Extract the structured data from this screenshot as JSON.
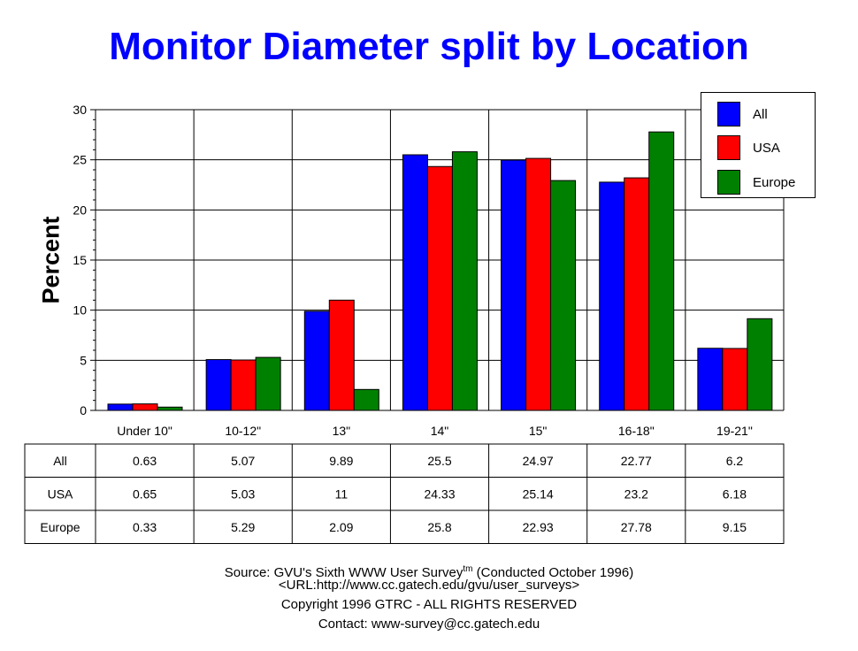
{
  "chart_data": {
    "type": "bar",
    "title": "Monitor Diameter split by Location",
    "ylabel": "Percent",
    "xlabel": "",
    "ylim": [
      0,
      30
    ],
    "yticks": [
      0,
      5,
      10,
      15,
      20,
      25,
      30
    ],
    "grid": true,
    "legend_position": "top-right",
    "categories": [
      "Under 10\"",
      "10-12\"",
      "13\"",
      "14\"",
      "15\"",
      "16-18\"",
      "19-21\""
    ],
    "series": [
      {
        "name": "All",
        "color": "#0000ff",
        "values": [
          0.63,
          5.07,
          9.89,
          25.5,
          24.97,
          22.77,
          6.2
        ],
        "labels": [
          "0.63",
          "5.07",
          "9.89",
          "25.5",
          "24.97",
          "22.77",
          "6.2"
        ]
      },
      {
        "name": "USA",
        "color": "#ff0000",
        "values": [
          0.65,
          5.03,
          11,
          24.33,
          25.14,
          23.2,
          6.18
        ],
        "labels": [
          "0.65",
          "5.03",
          "11",
          "24.33",
          "25.14",
          "23.2",
          "6.18"
        ]
      },
      {
        "name": "Europe",
        "color": "#008000",
        "values": [
          0.33,
          5.29,
          2.09,
          25.8,
          22.93,
          27.78,
          9.15
        ],
        "labels": [
          "0.33",
          "5.29",
          "2.09",
          "25.8",
          "22.93",
          "27.78",
          "9.15"
        ]
      }
    ]
  },
  "source": {
    "prefix": "Source: GVU's Sixth WWW User Survey",
    "tm": "tm",
    "suffix": " (Conducted October 1996)",
    "url": "<URL:http://www.cc.gatech.edu/gvu/user_surveys>",
    "copyright": "Copyright 1996 GTRC - ALL RIGHTS RESERVED",
    "contact": "Contact: www-survey@cc.gatech.edu"
  }
}
